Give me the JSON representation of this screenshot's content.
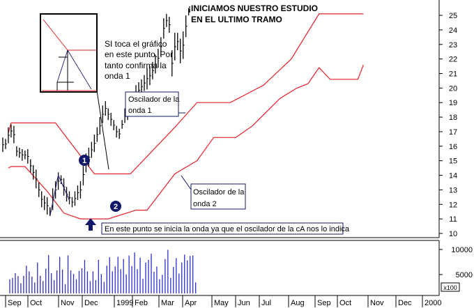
{
  "title_lines": [
    "¡INICIAMOS NUESTRO ESTUDIO",
    "EN EL ULTIMO TRAMO"
  ],
  "annotations": {
    "touch_note": [
      "SI toca  el gráfico",
      "en este punto. Por",
      "tanto confirma la",
      "onda 1"
    ],
    "osc1_box": [
      "Oscilador de la",
      "onda 1"
    ],
    "osc2_box": [
      "Oscilador de la",
      "onda 2"
    ],
    "start_note": "En este punto se inicia la onda ya que el oscilador de la cA nos lo indica",
    "wave_1_marker": "1",
    "wave_2_marker": "2"
  },
  "colors": {
    "price_bars": "#000000",
    "band": "#e8202a",
    "volume_bars": "#2c2ccc",
    "wave_line": "#2c2c7a",
    "marker_fill": "#10186a",
    "arrow": "#10186a"
  },
  "volume_unit_label": "x100",
  "chart_data": [
    {
      "type": "bar",
      "subtype": "ohlc-with-envelope-bands",
      "title": "¡INICIAMOS NUESTRO ESTUDIO EN EL ULTIMO TRAMO",
      "ylim": [
        10,
        25.5
      ],
      "yticks": [
        10,
        11,
        12,
        13,
        14,
        15,
        16,
        17,
        18,
        19,
        20,
        21,
        22,
        23,
        24,
        25
      ],
      "x_months": [
        "Sep",
        "Oct",
        "Nov",
        "Dec",
        "1999",
        "Feb",
        "Mar",
        "Apr",
        "May",
        "Jun",
        "Jul",
        "Aug",
        "Sep",
        "Oct",
        "Nov",
        "Dec",
        "2000"
      ],
      "price_bars": [
        [
          15.6,
          16.6
        ],
        [
          15.8,
          16.5
        ],
        [
          16.2,
          17.3
        ],
        [
          16.6,
          17.5
        ],
        [
          16.2,
          17.4
        ],
        [
          15.3,
          16.0
        ],
        [
          15.2,
          15.9
        ],
        [
          15.0,
          15.8
        ],
        [
          15.1,
          15.7
        ],
        [
          14.8,
          15.8
        ],
        [
          14.2,
          15.1
        ],
        [
          13.7,
          14.7
        ],
        [
          13.1,
          14.4
        ],
        [
          12.5,
          13.5
        ],
        [
          11.8,
          12.9
        ],
        [
          11.6,
          12.6
        ],
        [
          11.3,
          12.5
        ],
        [
          11.2,
          11.8
        ],
        [
          11.6,
          13.1
        ],
        [
          12.4,
          13.6
        ],
        [
          13.0,
          14.2
        ],
        [
          13.4,
          14.0
        ],
        [
          12.6,
          13.8
        ],
        [
          12.2,
          13.2
        ],
        [
          12.0,
          12.9
        ],
        [
          11.8,
          12.5
        ],
        [
          11.9,
          12.9
        ],
        [
          12.3,
          13.3
        ],
        [
          12.4,
          13.6
        ],
        [
          13.3,
          14.8
        ],
        [
          14.2,
          15.5
        ],
        [
          14.6,
          15.9
        ],
        [
          15.2,
          16.3
        ],
        [
          15.6,
          16.8
        ],
        [
          16.3,
          17.3
        ],
        [
          16.8,
          18.0
        ],
        [
          17.6,
          18.8
        ],
        [
          18.1,
          19.1
        ],
        [
          17.8,
          18.6
        ],
        [
          17.4,
          18.3
        ],
        [
          17.1,
          17.8
        ],
        [
          16.6,
          17.4
        ],
        [
          16.5,
          17.2
        ],
        [
          17.2,
          17.8
        ],
        [
          17.6,
          18.6
        ],
        [
          17.8,
          18.4
        ],
        [
          18.1,
          19.4
        ],
        [
          18.6,
          19.7
        ],
        [
          19.0,
          20.2
        ],
        [
          19.3,
          20.4
        ],
        [
          19.6,
          20.6
        ],
        [
          19.8,
          20.9
        ],
        [
          19.9,
          21.4
        ],
        [
          20.2,
          21.5
        ],
        [
          20.6,
          21.8
        ],
        [
          21.0,
          22.3
        ],
        [
          21.4,
          22.7
        ],
        [
          22.2,
          23.5
        ],
        [
          23.4,
          24.8
        ],
        [
          24.2,
          25.1
        ],
        [
          23.8,
          24.9
        ],
        [
          20.8,
          22.6
        ],
        [
          21.9,
          23.8
        ],
        [
          22.6,
          23.8
        ],
        [
          21.7,
          23.4
        ],
        [
          22.0,
          23.9
        ],
        [
          23.5,
          25.0
        ],
        [
          25.0,
          25.5
        ]
      ],
      "bands": {
        "upper": [
          [
            16.9,
            2
          ],
          [
            17.6,
            3
          ],
          [
            17.6,
            19
          ],
          [
            14.1,
            33
          ],
          [
            14.1,
            46
          ],
          [
            17.3,
            62
          ],
          [
            19.0,
            70
          ],
          [
            19.0,
            82
          ],
          [
            20.2,
            94
          ],
          [
            22.0,
            104
          ],
          [
            25.1,
            114
          ],
          [
            25.1,
            130
          ]
        ],
        "lower": [
          [
            14.5,
            2
          ],
          [
            14.6,
            3
          ],
          [
            14.6,
            8
          ],
          [
            12.9,
            16
          ],
          [
            11.4,
            22
          ],
          [
            11.0,
            28
          ],
          [
            11.0,
            38
          ],
          [
            11.6,
            48
          ],
          [
            11.6,
            52
          ],
          [
            14.1,
            62
          ],
          [
            15.0,
            70
          ],
          [
            16.6,
            76
          ],
          [
            16.6,
            84
          ],
          [
            17.4,
            90
          ],
          [
            19.3,
            100
          ],
          [
            20.0,
            106
          ],
          [
            20.3,
            110
          ],
          [
            21.4,
            114
          ],
          [
            20.6,
            118
          ],
          [
            20.6,
            128
          ],
          [
            21.6,
            130
          ]
        ]
      },
      "wave_line": [
        [
          11.2,
          17
        ],
        [
          14.0,
          20
        ],
        [
          12.3,
          24
        ]
      ],
      "volume": {
        "unit": "x100",
        "yticks": [
          5000,
          10000
        ],
        "values": [
          3200,
          3500,
          4600,
          3900,
          2300,
          4000,
          6300,
          5000,
          3800,
          2500,
          7000,
          4000,
          2800,
          5600,
          8700,
          4600,
          3000,
          5200,
          8300,
          5400,
          2100,
          8600,
          5200,
          4400,
          3200,
          5100,
          5700,
          7600,
          5000,
          2800,
          5000,
          3000,
          7600,
          4400,
          2600,
          6300,
          8200,
          5000,
          6100,
          8300,
          5500,
          7800,
          4300,
          8600,
          6200,
          9300,
          5500,
          8100,
          3300,
          7000,
          7600,
          9000,
          4900,
          6100,
          3200,
          4200,
          7800,
          9900,
          3500,
          6000,
          8000,
          4500,
          7000,
          8800,
          7500,
          8500,
          8600,
          2500
        ]
      }
    }
  ]
}
